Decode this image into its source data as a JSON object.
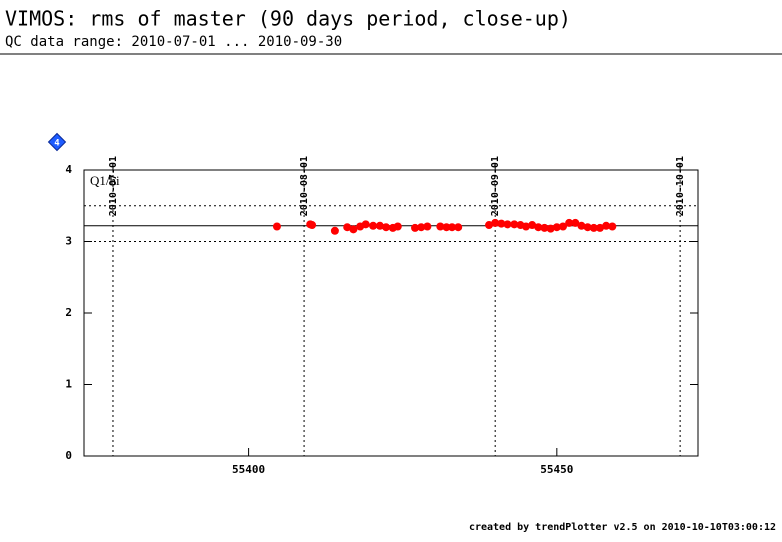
{
  "chart_data": {
    "type": "scatter",
    "title": "VIMOS: rms of master (90 days period, close-up)",
    "subtitle": "QC data range: 2010-07-01 ... 2010-09-30",
    "panel_label": "Q1/hi",
    "badge": "4",
    "footer": "created by trendPlotter v2.5 on 2010-10-10T03:00:12",
    "color": "#ff0000",
    "xlim": [
      55373.3,
      55472.9
    ],
    "ylim": [
      0,
      4
    ],
    "xticks": [
      55400,
      55450
    ],
    "yticks": [
      0,
      1,
      2,
      3,
      4
    ],
    "x2ticks": [
      {
        "value": 55378,
        "label": "2010-07-01"
      },
      {
        "value": 55409,
        "label": "2010-08-01"
      },
      {
        "value": 55440,
        "label": "2010-09-01"
      },
      {
        "value": 55470,
        "label": "2010-10-01"
      }
    ],
    "reference_lines": [
      {
        "value": 3.22,
        "style": "solid"
      },
      {
        "value": 3.0,
        "style": "dotted"
      },
      {
        "value": 3.5,
        "style": "dotted"
      }
    ],
    "x": [
      55404.6,
      55410.0,
      55410.3,
      55414.0,
      55416.0,
      55417.0,
      55418.1,
      55419.0,
      55420.2,
      55421.3,
      55422.3,
      55423.4,
      55424.2,
      55427.0,
      55428.0,
      55429.0,
      55431.1,
      55432.1,
      55433.0,
      55434.0,
      55439.0,
      55440.0,
      55441.0,
      55442.0,
      55443.1,
      55444.1,
      55445.0,
      55446.0,
      55447.0,
      55448.0,
      55449.0,
      55450.0,
      55451.0,
      55452.0,
      55453.0,
      55454.0,
      55455.0,
      55456.0,
      55457.0,
      55458.0,
      55459.0
    ],
    "values": [
      3.21,
      3.24,
      3.23,
      3.15,
      3.2,
      3.17,
      3.21,
      3.24,
      3.22,
      3.22,
      3.2,
      3.19,
      3.21,
      3.19,
      3.2,
      3.21,
      3.21,
      3.2,
      3.2,
      3.2,
      3.23,
      3.26,
      3.25,
      3.24,
      3.24,
      3.23,
      3.21,
      3.23,
      3.2,
      3.19,
      3.18,
      3.2,
      3.21,
      3.26,
      3.26,
      3.22,
      3.2,
      3.19,
      3.19,
      3.22,
      3.21
    ]
  }
}
